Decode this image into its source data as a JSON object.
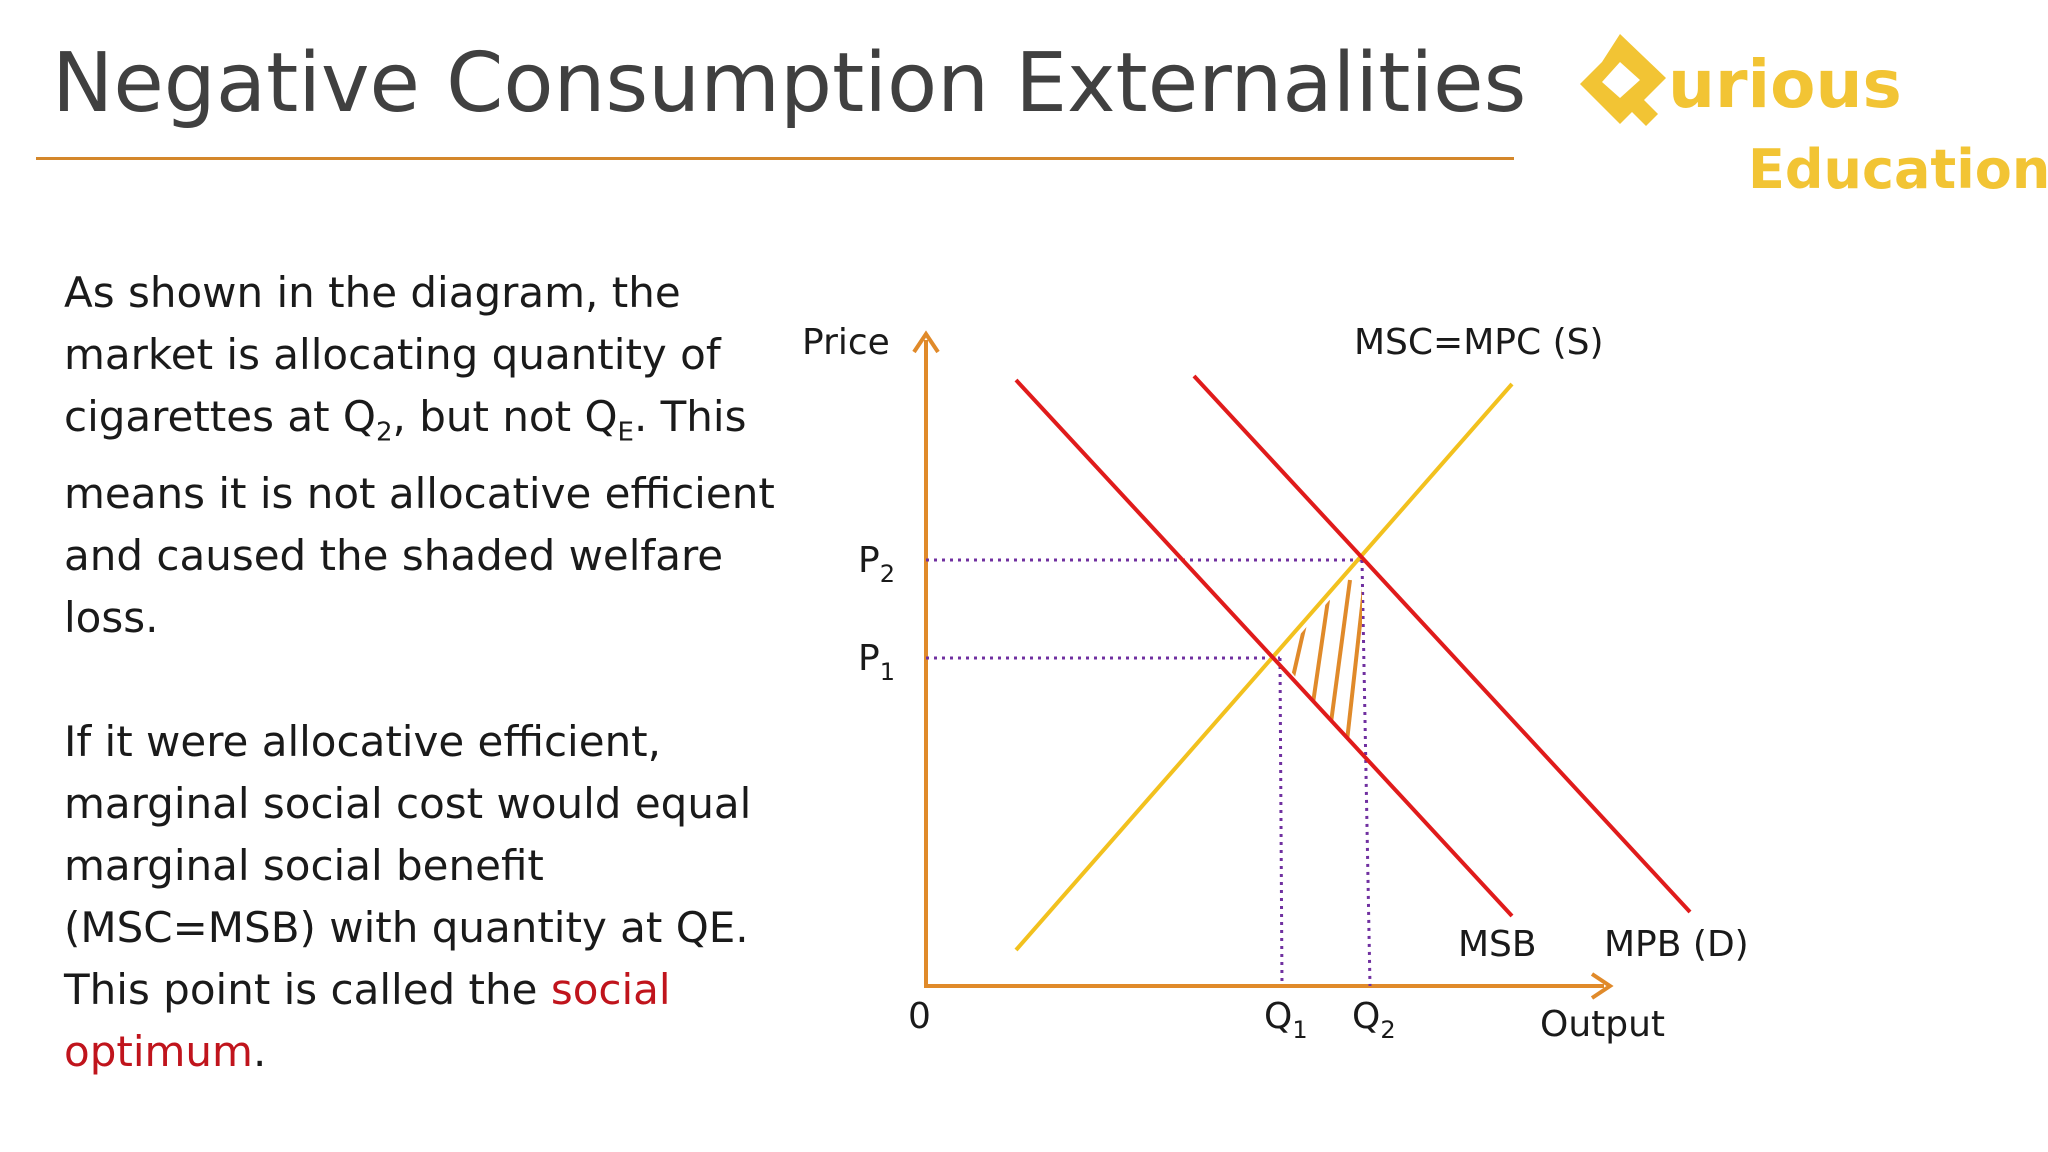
{
  "slide": {
    "title": "Negative Consumption Externalities",
    "logo": {
      "word1": "urious",
      "word2": "Education"
    }
  },
  "text": {
    "p1_a": "As shown in the diagram, the market is allocating quantity of cigarettes at Q",
    "p1_sub1": "2",
    "p1_b": ", but not Q",
    "p1_sub2": "E",
    "p1_c": ". This means it is not allocative efficient and caused the shaded welfare loss.",
    "p2_a": "If it were allocative efficient, marginal social cost would equal marginal social benefit (MSC=MSB) with quantity at QE. This point is called the ",
    "p2_red": "social optimum",
    "p2_end": "."
  },
  "diagram": {
    "y_axis_label": "Price",
    "x_axis_label": "Output",
    "origin_label": "0",
    "p2_label": "P",
    "p2_sub": "2",
    "p1_label": "P",
    "p1_sub": "1",
    "q1_label": "Q",
    "q1_sub": "1",
    "q2_label": "Q",
    "q2_sub": "2",
    "supply_label": "MSC=MPC (S)",
    "msb_label": "MSB",
    "mpb_label": "MPB (D)",
    "colors": {
      "axis": "#e08a2a",
      "supply": "#f2c11e",
      "demand": "#e01b1b",
      "guide": "#7030a0",
      "hatch": "#e08a2a"
    }
  }
}
